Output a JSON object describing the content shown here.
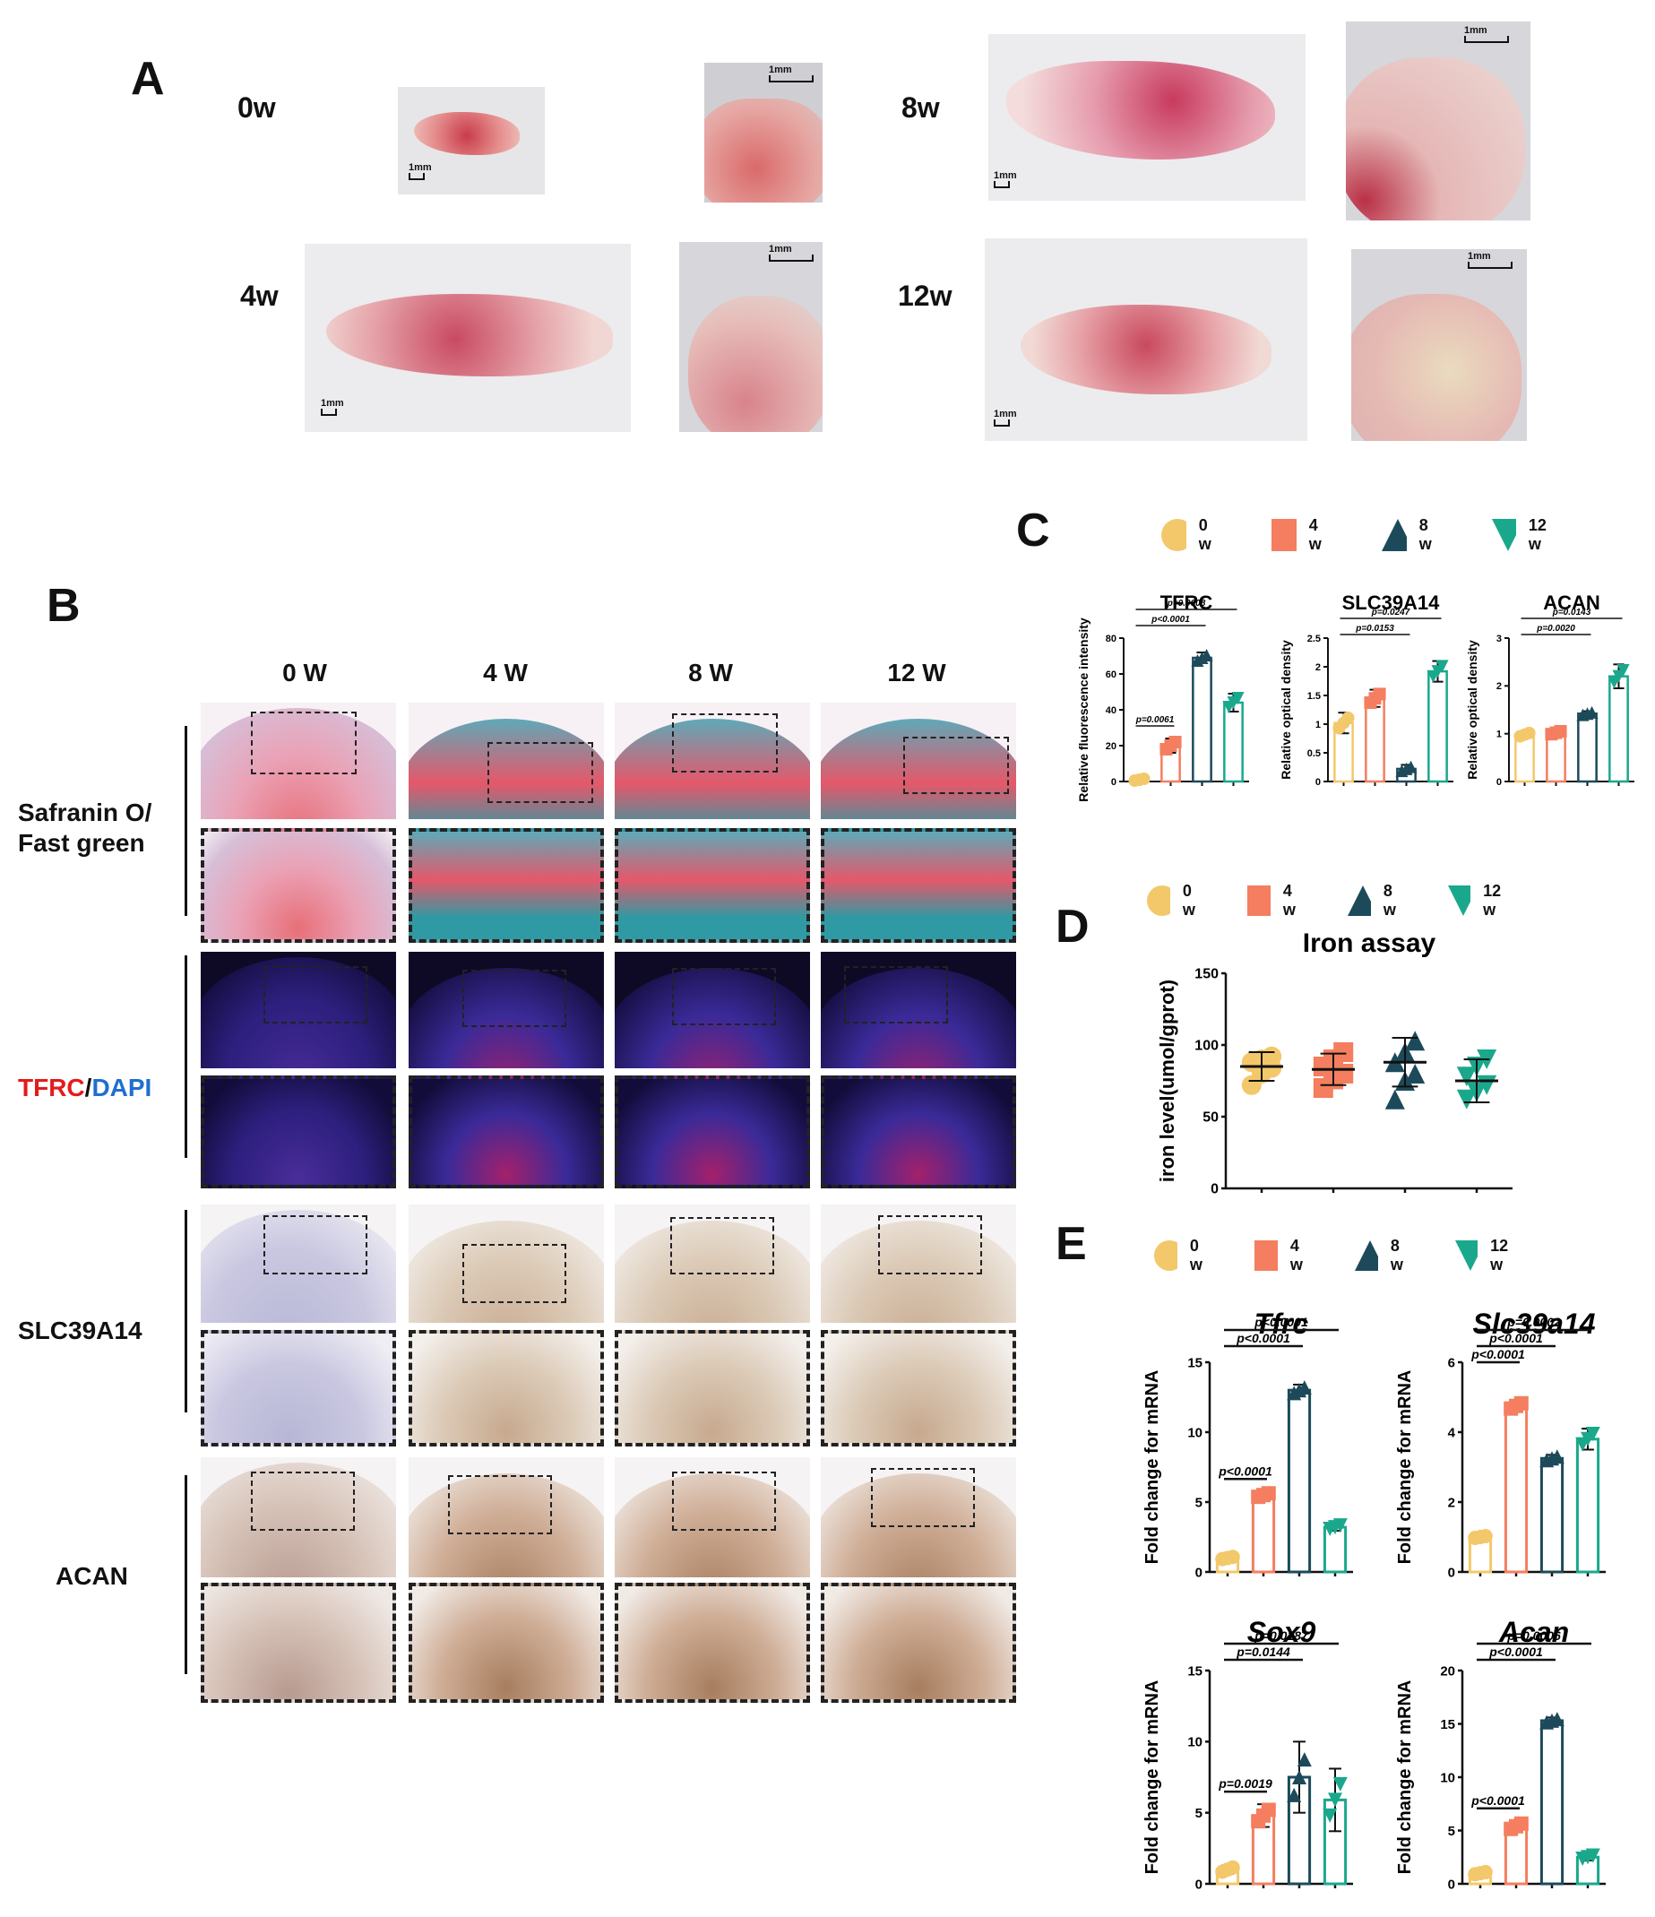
{
  "panels": {
    "a": {
      "letter": "A"
    },
    "b": {
      "letter": "B"
    },
    "c": {
      "letter": "C"
    },
    "d": {
      "letter": "D"
    },
    "e": {
      "letter": "E"
    }
  },
  "panel_a": {
    "weeks": [
      "0w",
      "4w",
      "8w",
      "12w"
    ],
    "scale_overview": "1mm",
    "scale_zoom": "1mm"
  },
  "panel_b": {
    "columns": [
      "0 W",
      "4 W",
      "8 W",
      "12 W"
    ],
    "rows": [
      {
        "label_line1": "Safranin O/",
        "label_line2": "Fast green"
      },
      {
        "label_red": "TFRC",
        "label_sep": "/",
        "label_blue": "DAPI"
      },
      {
        "label": "SLC39A14"
      },
      {
        "label": "ACAN"
      }
    ]
  },
  "legend": {
    "items": [
      "0 w",
      "4 w",
      "8 w",
      "12 w"
    ],
    "colors": [
      "#f3c86a",
      "#f47e5f",
      "#1c4a5a",
      "#1aa88c"
    ],
    "shapes": [
      "circle",
      "square",
      "triangle-up",
      "triangle-down"
    ]
  },
  "chart_data": [
    {
      "id": "c-tfrc",
      "type": "bar",
      "title": "TFRC",
      "ylabel": "Relative fluorescence intensity",
      "categories": [
        "0 w",
        "4 w",
        "8 w",
        "12 w"
      ],
      "values": [
        1,
        20,
        69,
        44
      ],
      "errors": [
        1,
        4,
        3,
        5
      ],
      "ylim": [
        0,
        80
      ],
      "yticks": [
        0,
        20,
        40,
        60,
        80
      ],
      "annotations": [
        {
          "text": "p=0.0061",
          "from": 0,
          "to": 1
        },
        {
          "text": "p<0.0001",
          "from": 0,
          "to": 2
        },
        {
          "text": "p=0.0008",
          "from": 0,
          "to": 3
        }
      ]
    },
    {
      "id": "c-slc",
      "type": "bar",
      "title": "SLC39A14",
      "ylabel": "Relative  optical density",
      "categories": [
        "0 w",
        "4 w",
        "8 w",
        "12 w"
      ],
      "values": [
        1.02,
        1.45,
        0.22,
        1.92
      ],
      "errors": [
        0.18,
        0.15,
        0.07,
        0.18
      ],
      "ylim": [
        0,
        2.5
      ],
      "yticks": [
        0.0,
        0.5,
        1.0,
        1.5,
        2.0,
        2.5
      ],
      "annotations": [
        {
          "text": "p=0.0153",
          "from": 0,
          "to": 2
        },
        {
          "text": "p=0.0247",
          "from": 0,
          "to": 3
        }
      ]
    },
    {
      "id": "c-acan",
      "type": "bar",
      "title": "ACAN",
      "ylabel": "Relative  optical density",
      "categories": [
        "0 w",
        "4 w",
        "8 w",
        "12 w"
      ],
      "values": [
        0.98,
        1.02,
        1.42,
        2.2
      ],
      "errors": [
        0.07,
        0.06,
        0.05,
        0.25
      ],
      "ylim": [
        0,
        3
      ],
      "yticks": [
        0,
        1,
        2,
        3
      ],
      "annotations": [
        {
          "text": "p=0.0020",
          "from": 0,
          "to": 2
        },
        {
          "text": "p=0.0143",
          "from": 0,
          "to": 3
        }
      ]
    },
    {
      "id": "d-iron",
      "type": "scatter",
      "title": "Iron assay",
      "ylabel": "iron level(umol/gprot)",
      "categories": [
        "0 w",
        "4 w",
        "8 w",
        "12 w"
      ],
      "means": [
        85,
        83,
        88,
        75
      ],
      "sds": [
        10,
        11,
        17,
        15
      ],
      "points": [
        [
          72,
          80,
          84,
          88,
          90,
          92
        ],
        [
          70,
          76,
          80,
          85,
          90,
          95
        ],
        [
          62,
          75,
          80,
          88,
          95,
          103
        ],
        [
          62,
          67,
          72,
          78,
          85,
          90
        ]
      ],
      "ylim": [
        0,
        150
      ],
      "yticks": [
        0,
        50,
        100,
        150
      ],
      "annotations": []
    },
    {
      "id": "e-tfrc",
      "type": "bar",
      "title": "Tfrc",
      "ylabel": "Fold change for mRNA",
      "categories": [
        "0 w",
        "4 w",
        "8 w",
        "12 w"
      ],
      "values": [
        1,
        5.5,
        13,
        3.2
      ],
      "errors": [
        0.15,
        0.25,
        0.4,
        0.25
      ],
      "ylim": [
        0,
        15
      ],
      "yticks": [
        0,
        5,
        10,
        15
      ],
      "annotations": [
        {
          "text": "p<0.0001",
          "from": 0,
          "to": 1
        },
        {
          "text": "p<0.0001",
          "from": 0,
          "to": 2
        },
        {
          "text": "p<0.0001",
          "from": 0,
          "to": 3
        }
      ]
    },
    {
      "id": "e-slc",
      "type": "bar",
      "title": "Slc39a14",
      "ylabel": "Fold change for mRNA",
      "categories": [
        "0 w",
        "4 w",
        "8 w",
        "12 w"
      ],
      "values": [
        1,
        4.75,
        3.25,
        3.8
      ],
      "errors": [
        0.05,
        0.15,
        0.1,
        0.3
      ],
      "ylim": [
        0,
        6
      ],
      "yticks": [
        0,
        2,
        4,
        6
      ],
      "annotations": [
        {
          "text": "p<0.0001",
          "from": 0,
          "to": 1
        },
        {
          "text": "p<0.0001",
          "from": 0,
          "to": 2
        },
        {
          "text": "p=0.0002",
          "from": 0,
          "to": 3
        }
      ]
    },
    {
      "id": "e-sox9",
      "type": "bar",
      "title": "Sox9",
      "ylabel": "Fold change for mRNA",
      "categories": [
        "0 w",
        "4 w",
        "8 w",
        "12 w"
      ],
      "values": [
        1,
        4.8,
        7.5,
        5.9
      ],
      "errors": [
        0.3,
        0.8,
        2.5,
        2.2
      ],
      "ylim": [
        0,
        15
      ],
      "yticks": [
        0,
        5,
        10,
        15
      ],
      "annotations": [
        {
          "text": "p=0.0019",
          "from": 0,
          "to": 1
        },
        {
          "text": "p=0.0144",
          "from": 0,
          "to": 2
        },
        {
          "text": "p=0.0187",
          "from": 0,
          "to": 3
        }
      ]
    },
    {
      "id": "e-acan",
      "type": "bar",
      "title": "Acan",
      "ylabel": "Fold change for mRNA",
      "categories": [
        "0 w",
        "4 w",
        "8 w",
        "12 w"
      ],
      "values": [
        1,
        5.4,
        15.3,
        2.5
      ],
      "errors": [
        0.2,
        0.5,
        0.3,
        0.3
      ],
      "ylim": [
        0,
        20
      ],
      "yticks": [
        0,
        5,
        10,
        15,
        20
      ],
      "annotations": [
        {
          "text": "p<0.0001",
          "from": 0,
          "to": 1
        },
        {
          "text": "p<0.0001",
          "from": 0,
          "to": 2
        },
        {
          "text": "p=0.0006",
          "from": 0,
          "to": 3
        }
      ]
    }
  ]
}
